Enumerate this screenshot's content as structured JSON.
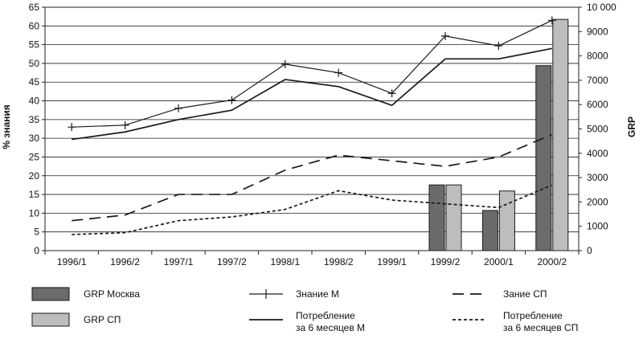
{
  "chart_data": {
    "type": "bar+line",
    "categories": [
      "1996/1",
      "1996/2",
      "1997/1",
      "1997/2",
      "1998/1",
      "1998/2",
      "1999/1",
      "1999/2",
      "2000/1",
      "2000/2"
    ],
    "y_left": {
      "label": "% знания",
      "ylim": [
        0,
        65
      ],
      "ticks": [
        0,
        5,
        10,
        15,
        20,
        25,
        30,
        35,
        40,
        45,
        50,
        55,
        60,
        65
      ]
    },
    "y_right": {
      "label": "GRP",
      "ylim": [
        0,
        10000
      ],
      "ticks": [
        "0",
        "1000",
        "2000",
        "3000",
        "4000",
        "5000",
        "6000",
        "7000",
        "8000",
        "9000",
        "10 000"
      ]
    },
    "grid": true,
    "bar_series": [
      {
        "name": "GRP Москва",
        "color": "#6b6b6b",
        "axis": "right",
        "values": [
          null,
          null,
          null,
          null,
          null,
          null,
          null,
          2700,
          1650,
          7600
        ]
      },
      {
        "name": "GRP СП",
        "color": "#bdbdbd",
        "axis": "right",
        "values": [
          null,
          null,
          null,
          null,
          null,
          null,
          null,
          2700,
          2450,
          9500
        ]
      }
    ],
    "line_series": [
      {
        "name": "Знание М",
        "style": "marker",
        "axis": "left",
        "values": [
          33,
          33.5,
          38,
          40.2,
          49.8,
          47.5,
          42,
          57.3,
          54.7,
          61.5
        ]
      },
      {
        "name": "Потребление за 6 месяцев М",
        "style": "solid",
        "axis": "left",
        "values": [
          29.7,
          31.7,
          35,
          37.5,
          45.7,
          43.8,
          38.8,
          51.2,
          51.2,
          54
        ]
      },
      {
        "name": "Зание СП",
        "style": "dashed",
        "axis": "left",
        "values": [
          8,
          9.5,
          15,
          15,
          21.5,
          25.5,
          24,
          22.5,
          25,
          31
        ]
      },
      {
        "name": "Потребление за 6 месяцев СП",
        "style": "dotted",
        "axis": "left",
        "values": [
          4.3,
          4.8,
          8,
          9,
          11,
          16,
          13.5,
          12.5,
          11.5,
          17.5
        ]
      }
    ],
    "legend": {
      "placement": "bottom",
      "items": [
        {
          "kind": "bar",
          "series": "GRP Москва",
          "lines": [
            "GRP Москва"
          ],
          "color": "#6b6b6b"
        },
        {
          "kind": "bar",
          "series": "GRP СП",
          "lines": [
            "GRP СП"
          ],
          "color": "#bdbdbd"
        },
        {
          "kind": "line",
          "style": "marker",
          "lines": [
            "Знание М"
          ]
        },
        {
          "kind": "line",
          "style": "solid",
          "lines": [
            "Потребление",
            "за 6 месяцев М"
          ]
        },
        {
          "kind": "line",
          "style": "dashed",
          "lines": [
            "Зание СП"
          ]
        },
        {
          "kind": "line",
          "style": "dotted",
          "lines": [
            "Потребление",
            "за 6 месяцев СП"
          ]
        }
      ]
    }
  }
}
